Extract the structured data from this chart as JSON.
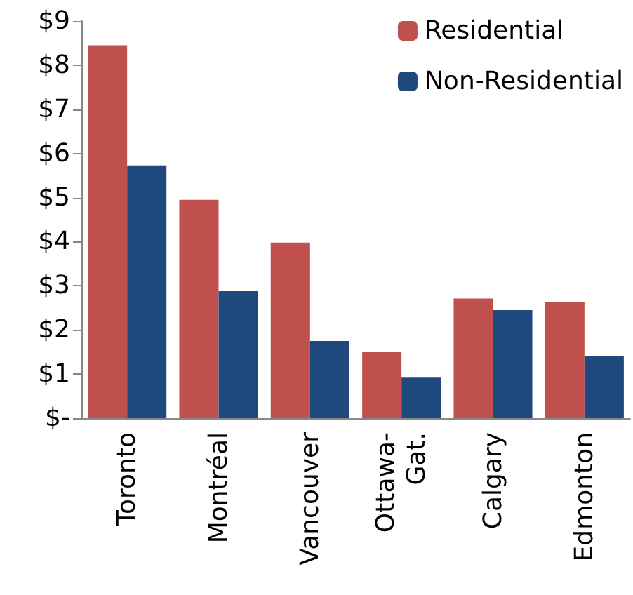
{
  "chart_data": {
    "type": "bar",
    "categories": [
      "Toronto",
      "Montréal",
      "Vancouver",
      "Ottawa-Gat.",
      "Calgary",
      "Edmonton"
    ],
    "series": [
      {
        "name": "Residential",
        "color": "#c0504d",
        "values": [
          8.45,
          4.95,
          3.98,
          1.5,
          2.71,
          2.64
        ]
      },
      {
        "name": "Non-Residential",
        "color": "#1f497d",
        "values": [
          5.73,
          2.88,
          1.75,
          0.92,
          2.45,
          1.4
        ]
      }
    ],
    "ylim": [
      0,
      9
    ],
    "yticks": [
      {
        "value": 0,
        "label": "$-"
      },
      {
        "value": 1,
        "label": "$1"
      },
      {
        "value": 2,
        "label": "$2"
      },
      {
        "value": 3,
        "label": "$3"
      },
      {
        "value": 4,
        "label": "$4"
      },
      {
        "value": 5,
        "label": "$5"
      },
      {
        "value": 6,
        "label": "$6"
      },
      {
        "value": 7,
        "label": "$7"
      },
      {
        "value": 8,
        "label": "$8"
      },
      {
        "value": 9,
        "label": "$9"
      }
    ],
    "grid": false,
    "legend": "top right"
  }
}
